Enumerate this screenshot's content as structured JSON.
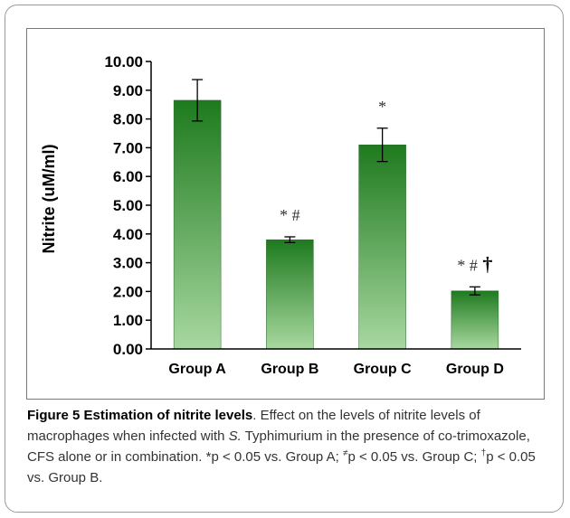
{
  "chart_data": {
    "type": "bar",
    "ylabel": "Nitrite (uM/ml)",
    "ylim": [
      0,
      10
    ],
    "ytick_labels": [
      "0.00",
      "1.00",
      "2.00",
      "3.00",
      "4.00",
      "5.00",
      "6.00",
      "7.00",
      "8.00",
      "9.00",
      "10.00"
    ],
    "categories": [
      "Group A",
      "Group B",
      "Group C",
      "Group D"
    ],
    "values": [
      8.65,
      3.8,
      7.1,
      2.02
    ],
    "errors": [
      0.72,
      0.1,
      0.58,
      0.14
    ],
    "annotations": [
      [],
      [
        "*",
        "#"
      ],
      [
        "*"
      ],
      [
        "*",
        "#",
        "†"
      ]
    ],
    "bar_color_top": "#1e7a1e",
    "bar_color_bottom": "#a8d8a0"
  },
  "caption": {
    "title": "Figure 5 Estimation of nitrite levels",
    "text_1": ". Effect on the levels of nitrite levels of macrophages when infected with ",
    "organism_genus": "S.",
    "text_2": " Typhimurium in the presence of co-trimoxazole, CFS alone or in combination. *p < 0.05 vs. Group A; ",
    "mark_1": "≠",
    "text_3": "p < 0.05 vs. Group C; ",
    "mark_2": "†",
    "text_4": "p < 0.05 vs. Group B."
  }
}
